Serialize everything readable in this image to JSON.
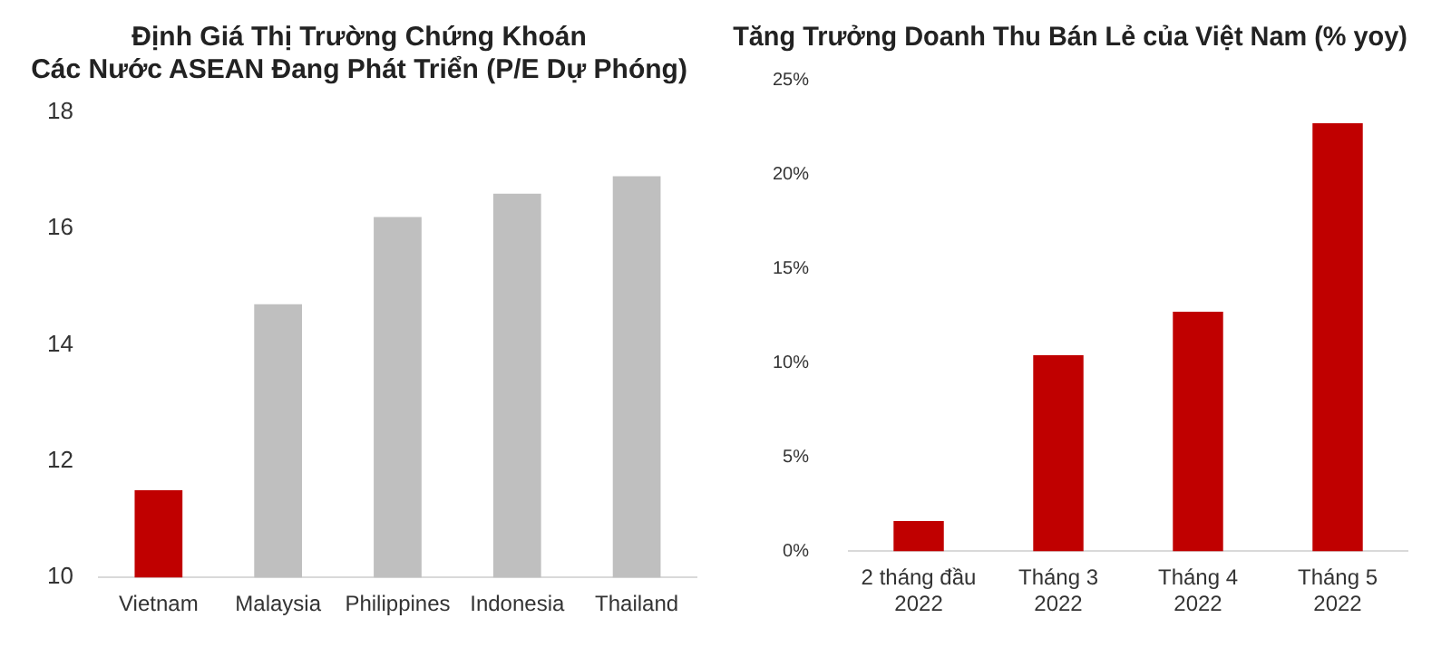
{
  "chart_data": [
    {
      "type": "bar",
      "title": "Định Giá Thị Trường Chứng Khoán\nCác Nước ASEAN Đang Phát Triển (P/E Dự Phóng)",
      "categories": [
        "Vietnam",
        "Malaysia",
        "Philippines",
        "Indonesia",
        "Thailand"
      ],
      "values": [
        11.5,
        14.7,
        16.2,
        16.6,
        16.9
      ],
      "colors": [
        "#c00000",
        "#bfbfbf",
        "#bfbfbf",
        "#bfbfbf",
        "#bfbfbf"
      ],
      "ylim": [
        10,
        18
      ],
      "yticks": [
        10,
        12,
        14,
        16,
        18
      ],
      "grid": false,
      "legend": false
    },
    {
      "type": "bar",
      "title": "Tăng Trưởng Doanh Thu Bán Lẻ của Việt Nam (% yoy)",
      "categories": [
        "2 tháng đầu\n2022",
        "Tháng 3\n2022",
        "Tháng 4\n2022",
        "Tháng 5\n2022"
      ],
      "values": [
        1.6,
        10.4,
        12.7,
        22.7
      ],
      "color": "#c00000",
      "ylim": [
        0,
        25
      ],
      "yticks": [
        {
          "value": 0,
          "label": "0%"
        },
        {
          "value": 5,
          "label": "5%"
        },
        {
          "value": 10,
          "label": "10%"
        },
        {
          "value": 15,
          "label": "15%"
        },
        {
          "value": 20,
          "label": "20%"
        },
        {
          "value": 25,
          "label": "25%"
        }
      ],
      "grid": false,
      "legend": false
    }
  ]
}
